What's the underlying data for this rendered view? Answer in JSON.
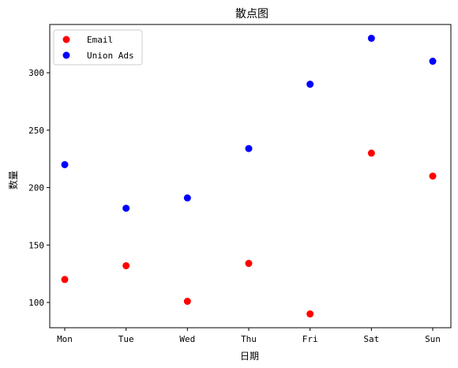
{
  "chart_data": {
    "type": "scatter",
    "title": "散点图",
    "xlabel": "日期",
    "ylabel": "数量",
    "categories": [
      "Mon",
      "Tue",
      "Wed",
      "Thu",
      "Fri",
      "Sat",
      "Sun"
    ],
    "yticks": [
      100,
      150,
      200,
      250,
      300
    ],
    "ylim": [
      78,
      342
    ],
    "grid": false,
    "legend_position": "top-left",
    "series": [
      {
        "name": "Email",
        "color": "#ff0000",
        "values": [
          120,
          132,
          101,
          134,
          90,
          230,
          210
        ]
      },
      {
        "name": "Union Ads",
        "color": "#0000ff",
        "values": [
          220,
          182,
          191,
          234,
          290,
          330,
          310
        ]
      }
    ]
  }
}
